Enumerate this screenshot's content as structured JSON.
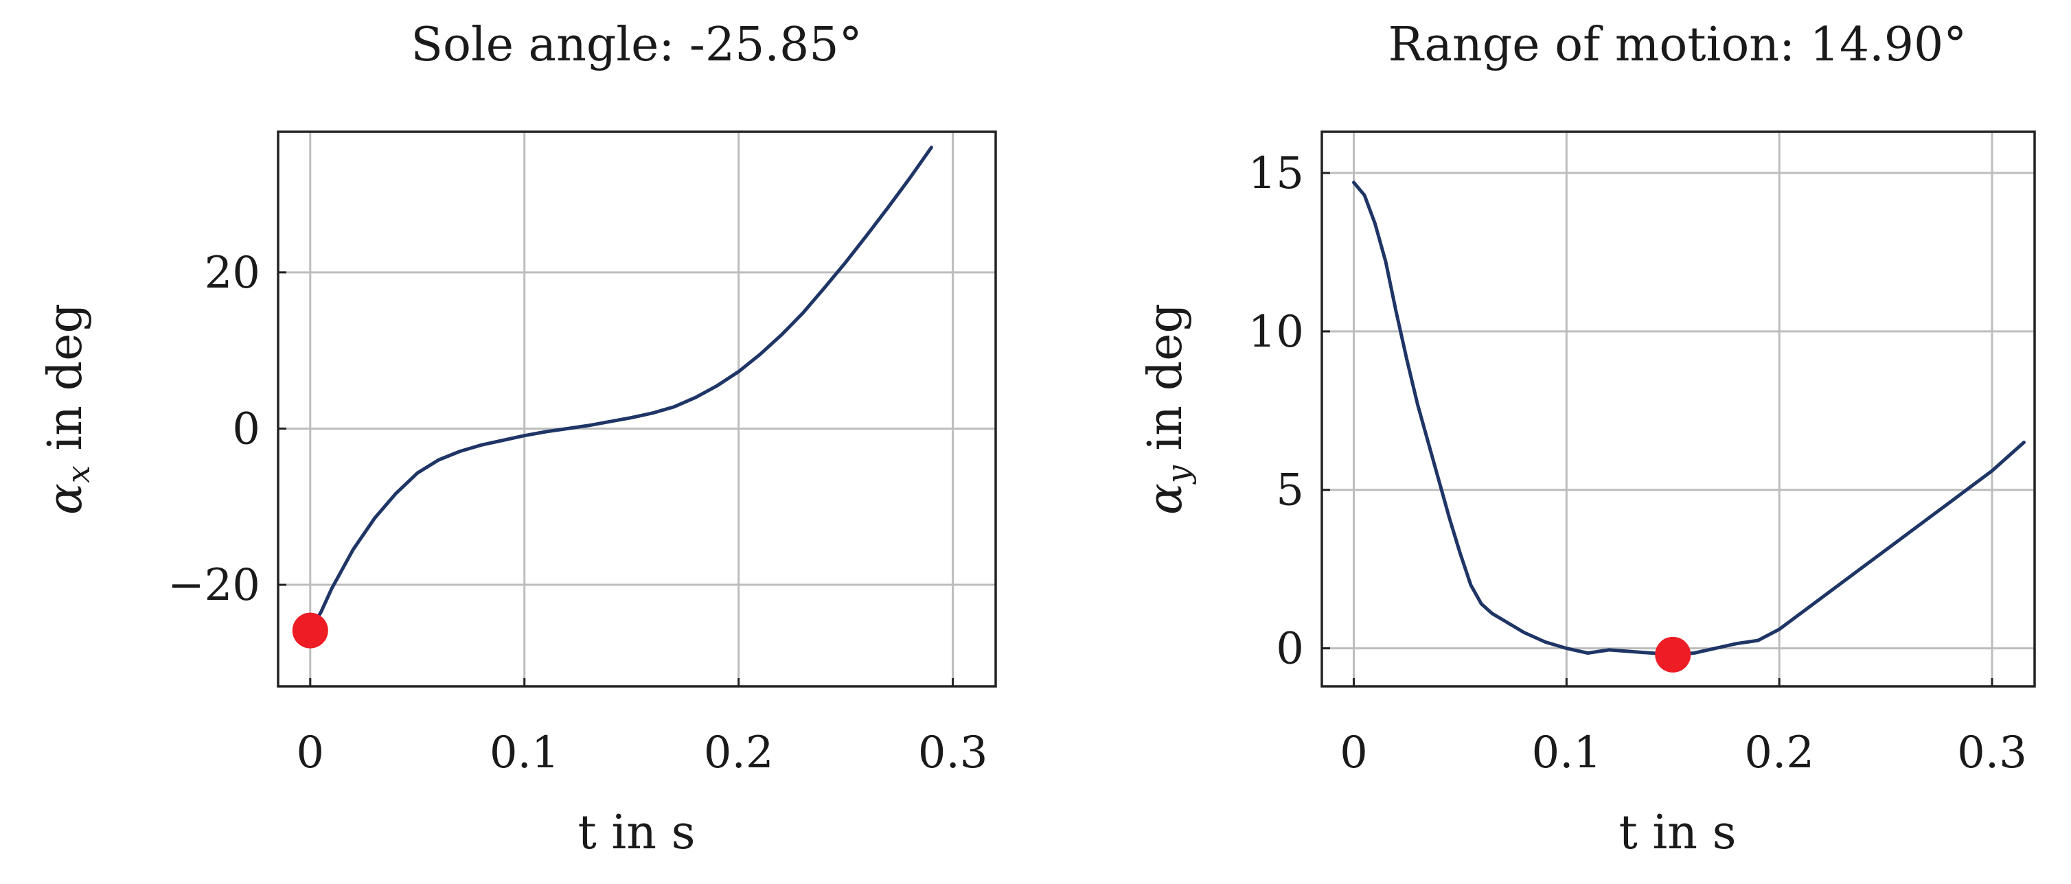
{
  "colors": {
    "line": "#1f3566",
    "marker": "#ee1c25",
    "grid": "#bdbdbd",
    "frame": "#222222"
  },
  "chart_data": [
    {
      "type": "line",
      "title": "Sole angle: -25.85°",
      "xlabel": "t in s",
      "ylabel_symbol": "α",
      "ylabel_sub": "x",
      "ylabel_rest": " in deg",
      "xlim": [
        -0.015,
        0.32
      ],
      "ylim": [
        -33,
        38
      ],
      "xticks": [
        0,
        0.1,
        0.2,
        0.3
      ],
      "xtick_labels": [
        "0",
        "0.1",
        "0.2",
        "0.3"
      ],
      "yticks": [
        -20,
        0,
        20
      ],
      "ytick_labels": [
        "−20",
        "0",
        "20"
      ],
      "grid": true,
      "series": [
        {
          "x": [
            0,
            0.005,
            0.01,
            0.02,
            0.03,
            0.04,
            0.05,
            0.06,
            0.07,
            0.08,
            0.09,
            0.1,
            0.11,
            0.12,
            0.13,
            0.14,
            0.15,
            0.16,
            0.17,
            0.18,
            0.19,
            0.2,
            0.21,
            0.22,
            0.23,
            0.24,
            0.25,
            0.26,
            0.27,
            0.28,
            0.29
          ],
          "y": [
            -25.85,
            -23.5,
            -20.5,
            -15.5,
            -11.5,
            -8.3,
            -5.7,
            -4.0,
            -2.9,
            -2.1,
            -1.5,
            -0.9,
            -0.4,
            0.0,
            0.4,
            0.9,
            1.4,
            2.0,
            2.8,
            4.0,
            5.5,
            7.3,
            9.5,
            12.0,
            14.8,
            18.0,
            21.3,
            24.8,
            28.4,
            32.1,
            36.0
          ]
        }
      ],
      "marker": {
        "x": 0,
        "y": -25.85
      }
    },
    {
      "type": "line",
      "title": "Range of motion: 14.90°",
      "xlabel": "t in s",
      "ylabel_symbol": "α",
      "ylabel_sub": "y",
      "ylabel_rest": " in deg",
      "xlim": [
        -0.015,
        0.32
      ],
      "ylim": [
        -1.2,
        16.3
      ],
      "xticks": [
        0,
        0.1,
        0.2,
        0.3
      ],
      "xtick_labels": [
        "0",
        "0.1",
        "0.2",
        "0.3"
      ],
      "yticks": [
        0,
        5,
        10,
        15
      ],
      "ytick_labels": [
        "0",
        "5",
        "10",
        "15"
      ],
      "grid": true,
      "series": [
        {
          "x": [
            0,
            0.005,
            0.01,
            0.015,
            0.02,
            0.025,
            0.03,
            0.035,
            0.04,
            0.045,
            0.05,
            0.055,
            0.06,
            0.065,
            0.07,
            0.08,
            0.09,
            0.1,
            0.11,
            0.12,
            0.13,
            0.14,
            0.15,
            0.16,
            0.17,
            0.18,
            0.19,
            0.2,
            0.21,
            0.22,
            0.23,
            0.24,
            0.25,
            0.26,
            0.27,
            0.28,
            0.29,
            0.3,
            0.315
          ],
          "y": [
            14.7,
            14.3,
            13.4,
            12.2,
            10.6,
            9.1,
            7.7,
            6.5,
            5.3,
            4.1,
            3.0,
            2.0,
            1.4,
            1.1,
            0.9,
            0.5,
            0.2,
            0.0,
            -0.15,
            -0.05,
            -0.1,
            -0.15,
            -0.2,
            -0.15,
            0.0,
            0.15,
            0.25,
            0.6,
            1.1,
            1.6,
            2.1,
            2.6,
            3.1,
            3.6,
            4.1,
            4.6,
            5.1,
            5.6,
            6.5
          ]
        }
      ],
      "marker": {
        "x": 0.15,
        "y": -0.2
      }
    }
  ]
}
